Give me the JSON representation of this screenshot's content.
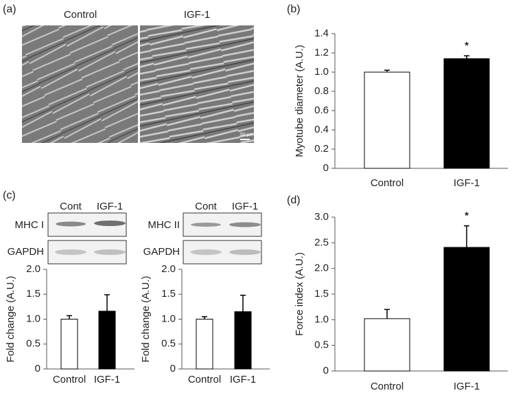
{
  "panels": {
    "a": {
      "label": "(a)",
      "image_labels": [
        "Control",
        "IGF-1"
      ],
      "scale_bar": "50 µm"
    },
    "b": {
      "label": "(b)"
    },
    "c": {
      "label": "(c)",
      "blots": [
        {
          "columns": [
            "Cont",
            "IGF-1"
          ],
          "rows": [
            "MHC I",
            "GAPDH"
          ]
        },
        {
          "columns": [
            "Cont",
            "IGF-1"
          ],
          "rows": [
            "MHC II",
            "GAPDH"
          ]
        }
      ]
    },
    "d": {
      "label": "(d)"
    }
  },
  "chart_data": [
    {
      "type": "bar",
      "y_label": "Myotube diameter (A.U.)",
      "categories": [
        "Control",
        "IGF-1"
      ],
      "values": [
        1.0,
        1.14
      ],
      "errors": [
        0.02,
        0.03
      ],
      "colors": [
        "#ffffff",
        "#000000"
      ],
      "ylim": [
        0,
        1.4
      ],
      "yticks": [
        0,
        0.2,
        0.4,
        0.6,
        0.8,
        {
          "value": 1,
          "label": "1.0"
        },
        1.2,
        1.4
      ],
      "annotations": [
        {
          "text": "*",
          "x": "IGF-1"
        }
      ]
    },
    {
      "type": "bar",
      "y_label": "Fold change (A.U.)",
      "categories": [
        "Control",
        "IGF-1"
      ],
      "values": [
        1.0,
        1.16
      ],
      "errors": [
        0.07,
        0.33
      ],
      "colors": [
        "#ffffff",
        "#000000"
      ],
      "ylim": [
        0,
        2
      ],
      "yticks": [
        0,
        0.5,
        {
          "value": 1,
          "label": "1.0"
        },
        1.5,
        {
          "value": 2,
          "label": "2.0"
        }
      ]
    },
    {
      "type": "bar",
      "y_label": "Fold change (A.U.)",
      "categories": [
        "Control",
        "IGF-1"
      ],
      "values": [
        1.0,
        1.15
      ],
      "errors": [
        0.05,
        0.33
      ],
      "colors": [
        "#ffffff",
        "#000000"
      ],
      "ylim": [
        0,
        2
      ],
      "yticks": [
        0,
        0.5,
        {
          "value": 1,
          "label": "1.0"
        },
        1.5,
        {
          "value": 2,
          "label": "2.0"
        }
      ]
    },
    {
      "type": "bar",
      "y_label": "Force index (A.U.)",
      "categories": [
        "Control",
        "IGF-1"
      ],
      "values": [
        1.02,
        2.41
      ],
      "errors": [
        0.18,
        0.42
      ],
      "colors": [
        "#ffffff",
        "#000000"
      ],
      "ylim": [
        0,
        3
      ],
      "yticks": [
        0,
        0.5,
        {
          "value": 1,
          "label": "1.0"
        },
        1.5,
        {
          "value": 2,
          "label": "2.0"
        },
        2.5,
        {
          "value": 3,
          "label": "3.0"
        }
      ],
      "annotations": [
        {
          "text": "*",
          "x": "IGF-1"
        }
      ]
    }
  ]
}
